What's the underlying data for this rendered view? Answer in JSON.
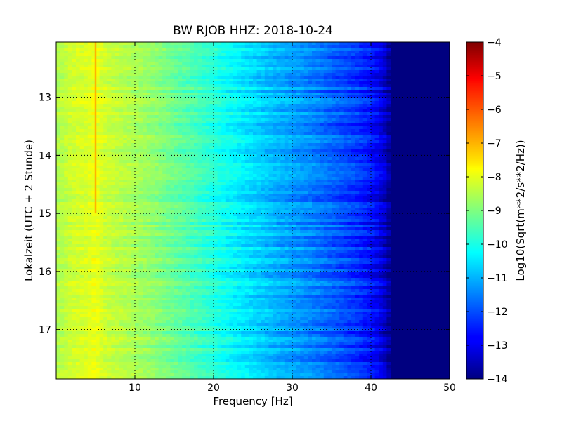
{
  "chart_data": {
    "type": "heatmap",
    "title": "BW RJOB HHZ: 2018-10-24",
    "xlabel": "Frequency [Hz]",
    "ylabel": "Lokalzeit (UTC + 2 Stunde)",
    "xlim": [
      0,
      50
    ],
    "ylim": [
      17.85,
      12.05
    ],
    "y_inverted": true,
    "xticks": [
      10,
      20,
      30,
      40,
      50
    ],
    "yticks": [
      13,
      14,
      15,
      16,
      17
    ],
    "grid": true,
    "colormap": "jet",
    "colorbar": {
      "label": "Log10(Sqrt(m**2/s**2/Hz))",
      "range": [
        -14,
        -4
      ],
      "ticks": [
        -4,
        -5,
        -6,
        -7,
        -8,
        -9,
        -10,
        -11,
        -12,
        -13,
        -14
      ]
    },
    "spectrum_profile": {
      "frequency": [
        0.5,
        2,
        4,
        5,
        6,
        8,
        10,
        12,
        15,
        18,
        20,
        22,
        25,
        28,
        30,
        32,
        35,
        38,
        40,
        41,
        42,
        42.5,
        43,
        45,
        50
      ],
      "value": [
        -8.5,
        -8.2,
        -8.1,
        -7.9,
        -8.2,
        -8.4,
        -8.6,
        -8.8,
        -9.2,
        -9.6,
        -9.9,
        -10.2,
        -10.6,
        -11.0,
        -11.2,
        -11.4,
        -11.8,
        -12.2,
        -12.6,
        -12.9,
        -13.4,
        -14.0,
        -14.0,
        -14.0,
        -14.0
      ]
    },
    "features": [
      {
        "frequency": 5.0,
        "time_range": [
          12.0,
          15.0
        ],
        "value": -7.0
      }
    ]
  }
}
